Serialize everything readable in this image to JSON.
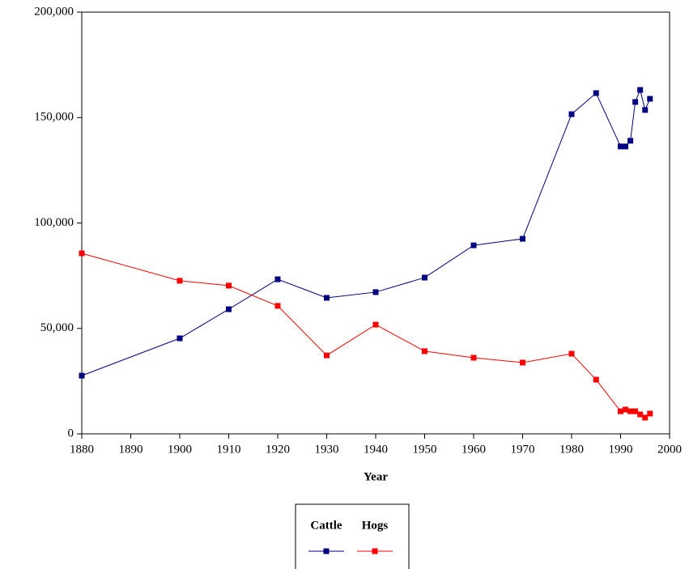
{
  "chart_data": {
    "type": "line",
    "xlabel": "Year",
    "x": [
      1880,
      1900,
      1910,
      1920,
      1930,
      1940,
      1950,
      1960,
      1970,
      1980,
      1985,
      1990,
      1991,
      1992,
      1993,
      1994,
      1995,
      1996
    ],
    "series": [
      {
        "name": "Cattle",
        "color": "#000080",
        "values": [
          27600,
          45300,
          59100,
          73300,
          64500,
          67200,
          74100,
          89400,
          92500,
          151600,
          161600,
          136300,
          136300,
          139000,
          157400,
          163100,
          153600,
          158900
        ]
      },
      {
        "name": "Hogs",
        "color": "#ff0000",
        "values": [
          85600,
          72600,
          70300,
          60700,
          37200,
          51800,
          39200,
          36100,
          33800,
          38000,
          25700,
          10700,
          11500,
          10700,
          10700,
          9200,
          7700,
          9600
        ]
      }
    ],
    "xlim": [
      1880,
      2000
    ],
    "xticks": [
      1880,
      1890,
      1900,
      1910,
      1920,
      1930,
      1940,
      1950,
      1960,
      1970,
      1980,
      1990,
      2000
    ],
    "ylim": [
      0,
      200000
    ],
    "yticks": [
      0,
      {
        "value": 50000,
        "label": "50,000"
      },
      {
        "value": 100000,
        "label": "100,000"
      },
      {
        "value": 150000,
        "label": "150,000"
      },
      {
        "value": 200000,
        "label": "200,000"
      }
    ],
    "legend": "bottom"
  }
}
